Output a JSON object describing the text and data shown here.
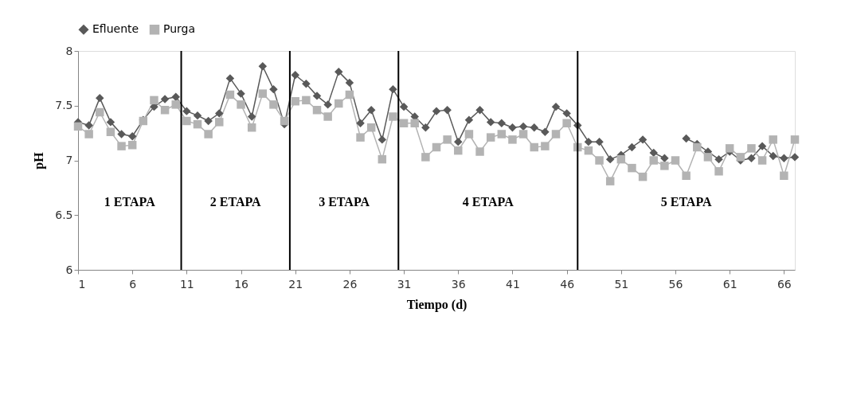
{
  "chart_data": {
    "type": "line",
    "xlabel": "Tiempo (d)",
    "ylabel": "pH",
    "x": [
      1,
      2,
      3,
      4,
      5,
      6,
      7,
      8,
      9,
      10,
      11,
      12,
      13,
      14,
      15,
      16,
      17,
      18,
      19,
      20,
      21,
      22,
      23,
      24,
      25,
      26,
      27,
      28,
      29,
      30,
      31,
      32,
      33,
      34,
      35,
      36,
      37,
      38,
      39,
      40,
      41,
      42,
      43,
      44,
      45,
      46,
      47,
      48,
      49,
      50,
      51,
      52,
      53,
      54,
      55,
      56,
      57,
      58,
      59,
      60,
      61,
      62,
      63,
      64,
      65,
      66,
      67
    ],
    "series": [
      {
        "name": "Efluente",
        "color": "#595959",
        "marker": "diamond",
        "values": [
          7.35,
          7.32,
          7.57,
          7.35,
          7.24,
          7.22,
          7.37,
          7.49,
          7.56,
          7.58,
          7.45,
          7.41,
          7.36,
          7.43,
          7.75,
          7.61,
          7.4,
          7.86,
          7.65,
          7.33,
          7.78,
          7.7,
          7.59,
          7.51,
          7.81,
          7.71,
          7.34,
          7.46,
          7.19,
          7.65,
          7.49,
          7.4,
          7.3,
          7.45,
          7.46,
          7.17,
          7.37,
          7.46,
          7.35,
          7.34,
          7.3,
          7.31,
          7.3,
          7.26,
          7.49,
          7.43,
          7.32,
          7.17,
          7.17,
          7.01,
          7.05,
          7.12,
          7.19,
          7.07,
          7.02,
          null,
          7.2,
          7.15,
          7.08,
          7.01,
          7.08,
          7.0,
          7.02,
          7.13,
          7.04,
          7.02,
          7.03
        ]
      },
      {
        "name": "Purga",
        "color": "#b3b3b3",
        "marker": "square",
        "values": [
          7.31,
          7.24,
          7.44,
          7.26,
          7.13,
          7.14,
          7.36,
          7.55,
          7.46,
          7.51,
          7.36,
          7.33,
          7.24,
          7.35,
          7.6,
          7.51,
          7.3,
          7.61,
          7.51,
          7.36,
          7.54,
          7.55,
          7.46,
          7.4,
          7.52,
          7.6,
          7.21,
          7.3,
          7.01,
          7.4,
          7.34,
          7.34,
          7.03,
          7.12,
          7.19,
          7.09,
          7.24,
          7.08,
          7.21,
          7.24,
          7.19,
          7.24,
          7.12,
          7.13,
          7.24,
          7.34,
          7.12,
          7.09,
          7.0,
          6.81,
          7.01,
          6.93,
          6.85,
          7.0,
          6.95,
          7.0,
          6.86,
          7.12,
          7.03,
          6.9,
          7.11,
          7.03,
          7.11,
          7.0,
          7.19,
          6.86,
          7.19
        ]
      }
    ],
    "xlim": [
      1,
      67
    ],
    "xticks": [
      1,
      6,
      11,
      16,
      21,
      26,
      31,
      36,
      41,
      46,
      51,
      56,
      61,
      66
    ],
    "ylim": [
      6,
      8
    ],
    "yticks": [
      6,
      6.5,
      7,
      7.5,
      8
    ],
    "ref_lines": [
      {
        "axis": "x",
        "value": 10.5,
        "label": null,
        "color": "#000000"
      },
      {
        "axis": "x",
        "value": 20.5,
        "label": null,
        "color": "#000000"
      },
      {
        "axis": "x",
        "value": 30.5,
        "label": null,
        "color": "#000000"
      },
      {
        "axis": "x",
        "value": 47,
        "label": null,
        "color": "#000000"
      }
    ],
    "annotations": [
      "1 ETAPA",
      "2 ETAPA",
      "3 ETAPA",
      "4 ETAPA",
      "5 ETAPA"
    ],
    "legend": "top",
    "grid": false,
    "line_style": "solid"
  }
}
